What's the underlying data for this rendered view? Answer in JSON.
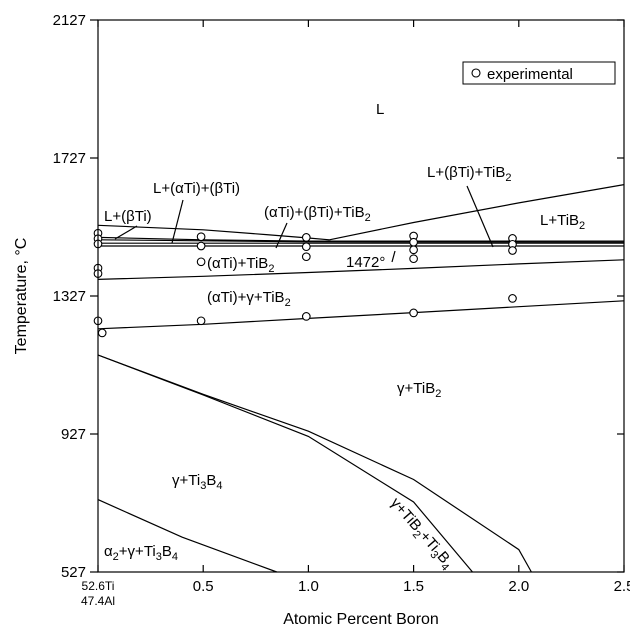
{
  "chart_data": {
    "type": "line",
    "xlabel": "Atomic Percent Boron",
    "ylabel": "Temperature, °C",
    "xlim": [
      0,
      2.5
    ],
    "ylim": [
      527,
      2127
    ],
    "x_ticks": [
      {
        "value": 0.5,
        "label": "0.5"
      },
      {
        "value": 1.0,
        "label": "1.0"
      },
      {
        "value": 1.5,
        "label": "1.5"
      },
      {
        "value": 2.0,
        "label": "2.0"
      },
      {
        "value": 2.5,
        "label": "2.5"
      }
    ],
    "x_origin_label_line1": "52.6Ti",
    "x_origin_label_line2": "47.4Al",
    "y_ticks": [
      {
        "value": 527,
        "label": "527"
      },
      {
        "value": 927,
        "label": "927"
      },
      {
        "value": 1327,
        "label": "1327"
      },
      {
        "value": 1727,
        "label": "1727"
      },
      {
        "value": 2127,
        "label": "2127"
      }
    ],
    "legend": {
      "label": "experimental",
      "position": "top-right"
    },
    "series": [
      {
        "x": [
          0,
          0.5,
          1.0,
          1.5,
          2.0,
          2.5
        ],
        "y": [
          1232,
          1245,
          1262,
          1279,
          1296,
          1313
        ]
      },
      {
        "x": [
          0,
          0.5,
          1.0,
          1.5,
          2.0,
          2.5
        ],
        "y": [
          1375,
          1384,
          1395,
          1407,
          1420,
          1432
        ]
      },
      {
        "x": [
          0,
          2.5
        ],
        "y": [
          1472,
          1472
        ]
      },
      {
        "x": [
          0,
          2.5
        ],
        "y": [
          1480,
          1480
        ]
      },
      {
        "x": [
          0,
          1.0,
          2.5
        ],
        "y": [
          1490,
          1484,
          1483
        ]
      },
      {
        "x": [
          0,
          0.5,
          1.0,
          2.5
        ],
        "y": [
          1497,
          1490,
          1486,
          1486
        ]
      },
      {
        "x": [
          0,
          0.5,
          0.8,
          1.0,
          1.1
        ],
        "y": [
          1532,
          1519,
          1505,
          1495,
          1490
        ]
      },
      {
        "x": [
          1.1,
          1.5,
          2.0,
          2.5
        ],
        "y": [
          1490,
          1540,
          1597,
          1650
        ]
      },
      {
        "x": [
          0,
          0.5,
          1.0,
          1.5,
          2.0,
          2.06
        ],
        "y": [
          1156,
          1042,
          935,
          795,
          592,
          527
        ]
      },
      {
        "x": [
          0,
          0.5,
          1.0,
          1.5,
          1.78
        ],
        "y": [
          1156,
          1040,
          920,
          730,
          527
        ]
      },
      {
        "x": [
          0,
          0.4,
          0.85
        ],
        "y": [
          737,
          628,
          527
        ]
      }
    ],
    "experimental_points": [
      {
        "x": 0,
        "y": 1509
      },
      {
        "x": 0,
        "y": 1493
      },
      {
        "x": 0,
        "y": 1478
      },
      {
        "x": 0,
        "y": 1408
      },
      {
        "x": 0,
        "y": 1392
      },
      {
        "x": 0,
        "y": 1255
      },
      {
        "x": 0.02,
        "y": 1220
      },
      {
        "x": 0.49,
        "y": 1499
      },
      {
        "x": 0.49,
        "y": 1472
      },
      {
        "x": 0.49,
        "y": 1426
      },
      {
        "x": 0.49,
        "y": 1255
      },
      {
        "x": 0.99,
        "y": 1497
      },
      {
        "x": 0.99,
        "y": 1470
      },
      {
        "x": 0.99,
        "y": 1441
      },
      {
        "x": 0.99,
        "y": 1268
      },
      {
        "x": 1.5,
        "y": 1501
      },
      {
        "x": 1.5,
        "y": 1483
      },
      {
        "x": 1.5,
        "y": 1461
      },
      {
        "x": 1.5,
        "y": 1435
      },
      {
        "x": 1.5,
        "y": 1278
      },
      {
        "x": 1.97,
        "y": 1494
      },
      {
        "x": 1.97,
        "y": 1477
      },
      {
        "x": 1.97,
        "y": 1459
      },
      {
        "x": 1.97,
        "y": 1320
      }
    ],
    "annotations": [
      {
        "text": "L"
      },
      {
        "text": "L+(βTi)+TiB",
        "sub": "2"
      },
      {
        "text": "L+TiB",
        "sub": "2"
      },
      {
        "text": "L+(αTi)+(βTi)"
      },
      {
        "text": "L+(βTi)"
      },
      {
        "text": "(αTi)+(βTi)+TiB",
        "sub": "2"
      },
      {
        "text": "(αTi)+TiB",
        "sub": "2"
      },
      {
        "text": "1472°"
      },
      {
        "text": "(αTi)+γ+TiB",
        "sub": "2"
      },
      {
        "text": "γ+TiB",
        "sub": "2"
      },
      {
        "text": "γ+Ti",
        "sub": "3",
        "text2": "B",
        "sub2": "4"
      },
      {
        "text": "α",
        "sub": "2",
        "text2": "+γ+Ti",
        "sub2": "3",
        "text3": "B",
        "sub3": "4"
      },
      {
        "text": "γ+TiB",
        "sub": "2",
        "text2": "+Ti",
        "sub2": "3",
        "text3": "B",
        "sub3": "4"
      }
    ]
  }
}
